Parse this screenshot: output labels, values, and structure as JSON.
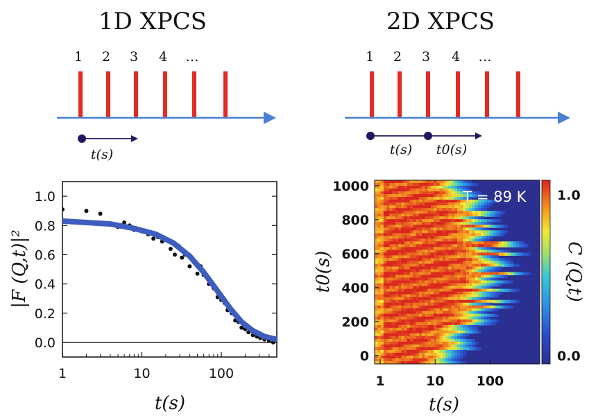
{
  "panels": {
    "left_title": "1D XPCS",
    "right_title": "2D XPCS",
    "left_pulse_labels": [
      "1",
      "2",
      "3",
      "4",
      "…"
    ],
    "right_pulse_labels": [
      "1",
      "2",
      "3",
      "4",
      "…"
    ],
    "left_time_label": "t(s)",
    "right_time_label": "t(s)",
    "right_t0_label": "t0(s)"
  },
  "colors": {
    "pulse": "#e32b24",
    "timeline": "#4a7fd6",
    "marker": "#24155e",
    "fit": "#3d5dbf",
    "points": "#111111"
  },
  "chart_data": [
    {
      "type": "scatter",
      "ylabel": "|F (Q,t)|²",
      "xlabel": "t(s)",
      "xscale": "log",
      "xlim": [
        1,
        500
      ],
      "ylim": [
        -0.1,
        1.1
      ],
      "xticks": [
        "1",
        "10",
        "100"
      ],
      "yticks": [
        "0.0",
        "0.2",
        "0.4",
        "0.6",
        "0.8",
        "1.0"
      ],
      "baseline": 0,
      "fit_curve": {
        "x": [
          1,
          2,
          4,
          8,
          15,
          25,
          40,
          60,
          90,
          130,
          180,
          250,
          350,
          500
        ],
        "y": [
          0.83,
          0.82,
          0.81,
          0.78,
          0.74,
          0.68,
          0.59,
          0.48,
          0.35,
          0.23,
          0.14,
          0.08,
          0.04,
          0.02
        ]
      },
      "points": {
        "x": [
          1,
          2,
          3,
          4,
          5,
          6,
          7,
          8,
          10,
          12,
          14,
          16,
          18,
          20,
          23,
          26,
          29,
          32,
          35,
          40,
          45,
          50,
          55,
          60,
          70,
          80,
          90,
          100,
          110,
          120,
          135,
          150,
          165,
          180,
          200,
          220,
          250,
          280,
          310,
          350,
          400,
          450,
          500
        ],
        "y": [
          0.91,
          0.9,
          0.88,
          0.81,
          0.79,
          0.82,
          0.8,
          0.77,
          0.76,
          0.74,
          0.71,
          0.72,
          0.69,
          0.7,
          0.64,
          0.6,
          0.66,
          0.58,
          0.6,
          0.52,
          0.55,
          0.47,
          0.52,
          0.46,
          0.4,
          0.37,
          0.31,
          0.29,
          0.27,
          0.22,
          0.2,
          0.15,
          0.14,
          0.1,
          0.09,
          0.07,
          0.05,
          0.04,
          0.03,
          0.02,
          0.01,
          0.0,
          0.02
        ]
      }
    },
    {
      "type": "heatmap",
      "xlabel": "t(s)",
      "ylabel": "t0(s)",
      "xscale": "log",
      "xticks": [
        "1",
        "10",
        "100"
      ],
      "yticks": [
        "0",
        "200",
        "400",
        "600",
        "800",
        "1000"
      ],
      "ylim": [
        0,
        1000
      ],
      "annotation": "T = 89 K",
      "colorbar": {
        "label": "C (Q,t)",
        "min": 0.0,
        "max": 1.0,
        "ticks": [
          "0.0",
          "1.0"
        ]
      }
    }
  ]
}
